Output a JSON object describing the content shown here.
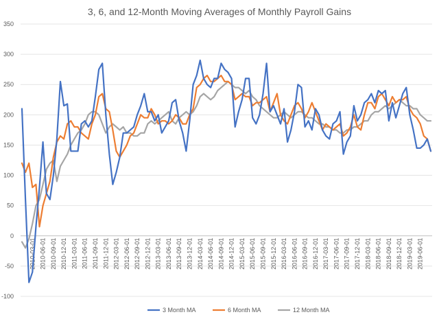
{
  "chart_data": {
    "type": "line",
    "title": "3, 6, and 12-Month Moving Averages of Monthly Payroll Gains",
    "xlabel": "",
    "ylabel": "",
    "ylim": [
      -100,
      350
    ],
    "yticks": [
      -100,
      -50,
      0,
      50,
      100,
      150,
      200,
      250,
      300,
      350
    ],
    "grid": true,
    "legend_position": "bottom",
    "x_tick_labels": [
      "2010-03-01",
      "2010-06-01",
      "2010-09-01",
      "2010-12-01",
      "2011-03-01",
      "2011-06-01",
      "2011-09-01",
      "2011-12-01",
      "2012-03-01",
      "2012-06-01",
      "2012-09-01",
      "2012-12-01",
      "2013-03-01",
      "2013-06-01",
      "2013-09-01",
      "2013-12-01",
      "2014-03-01",
      "2014-06-01",
      "2014-09-01",
      "2014-12-01",
      "2015-03-01",
      "2015-06-01",
      "2015-09-01",
      "2015-12-01",
      "2016-03-01",
      "2016-06-01",
      "2016-09-01",
      "2016-12-01",
      "2017-03-01",
      "2017-06-01",
      "2017-09-01",
      "2017-12-01",
      "2018-03-01",
      "2018-06-01",
      "2018-09-01",
      "2018-12-01",
      "2019-03-01",
      "2019-06-01"
    ],
    "series": [
      {
        "name": "3 Month MA",
        "color": "#4472C4",
        "values": [
          210,
          60,
          -77,
          -60,
          15,
          80,
          155,
          70,
          60,
          100,
          160,
          255,
          215,
          218,
          140,
          140,
          140,
          185,
          190,
          180,
          190,
          230,
          275,
          285,
          200,
          135,
          85,
          105,
          130,
          170,
          170,
          175,
          180,
          200,
          215,
          235,
          205,
          205,
          190,
          200,
          170,
          180,
          190,
          220,
          225,
          190,
          170,
          140,
          190,
          250,
          265,
          290,
          260,
          250,
          245,
          260,
          260,
          285,
          275,
          270,
          260,
          180,
          205,
          225,
          260,
          260,
          195,
          185,
          200,
          235,
          285,
          205,
          215,
          200,
          185,
          210,
          155,
          175,
          205,
          250,
          245,
          180,
          190,
          175,
          210,
          200,
          175,
          165,
          160,
          185,
          190,
          205,
          135,
          155,
          165,
          215,
          190,
          200,
          220,
          225,
          235,
          220,
          240,
          235,
          240,
          190,
          220,
          195,
          215,
          235,
          245,
          200,
          175,
          145,
          145,
          150,
          160,
          140
        ]
      },
      {
        "name": "6 Month MA",
        "color": "#ED7D31",
        "values": [
          120,
          105,
          120,
          80,
          85,
          15,
          50,
          70,
          90,
          130,
          155,
          165,
          160,
          185,
          190,
          180,
          180,
          170,
          165,
          160,
          185,
          200,
          230,
          235,
          210,
          205,
          175,
          140,
          130,
          140,
          150,
          165,
          170,
          185,
          200,
          195,
          195,
          210,
          200,
          185,
          190,
          190,
          185,
          190,
          200,
          195,
          185,
          185,
          200,
          210,
          245,
          250,
          260,
          265,
          255,
          255,
          260,
          265,
          255,
          255,
          250,
          225,
          230,
          235,
          230,
          230,
          215,
          220,
          220,
          225,
          230,
          205,
          220,
          235,
          200,
          190,
          185,
          200,
          215,
          220,
          210,
          195,
          205,
          220,
          205,
          190,
          175,
          185,
          180,
          175,
          180,
          185,
          165,
          170,
          180,
          200,
          180,
          175,
          200,
          220,
          220,
          210,
          230,
          235,
          225,
          215,
          230,
          220,
          225,
          225,
          230,
          210,
          200,
          195,
          185,
          165,
          160,
          140
        ]
      },
      {
        "name": "12 Month MA",
        "color": "#A5A5A5",
        "values": [
          -10,
          -20,
          -5,
          20,
          50,
          60,
          85,
          110,
          120,
          125,
          90,
          115,
          125,
          135,
          150,
          160,
          170,
          175,
          185,
          200,
          205,
          205,
          200,
          185,
          170,
          180,
          185,
          180,
          175,
          180,
          170,
          170,
          165,
          165,
          170,
          170,
          185,
          190,
          185,
          190,
          195,
          200,
          205,
          190,
          185,
          195,
          200,
          205,
          200,
          205,
          215,
          230,
          235,
          230,
          225,
          230,
          240,
          245,
          250,
          255,
          250,
          245,
          245,
          240,
          235,
          240,
          230,
          225,
          215,
          210,
          205,
          200,
          195,
          195,
          200,
          205,
          200,
          195,
          200,
          205,
          205,
          200,
          195,
          195,
          190,
          185,
          185,
          180,
          180,
          175,
          175,
          170,
          170,
          175,
          175,
          180,
          180,
          185,
          190,
          190,
          200,
          205,
          205,
          210,
          215,
          210,
          215,
          220,
          225,
          220,
          215,
          215,
          210,
          210,
          200,
          195,
          190,
          190
        ]
      }
    ]
  }
}
